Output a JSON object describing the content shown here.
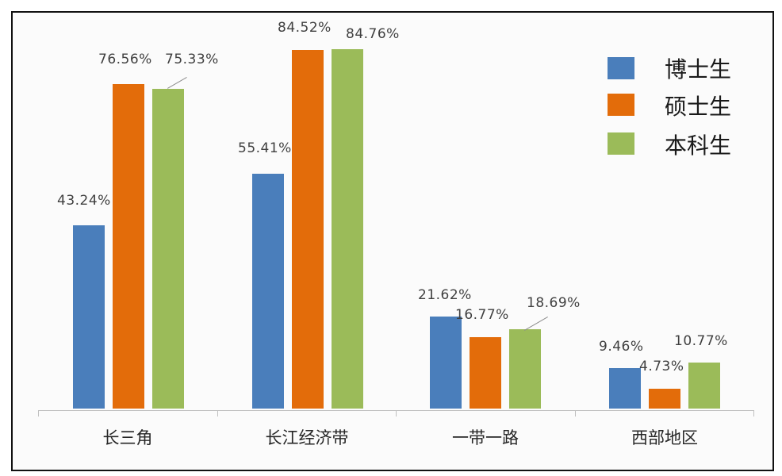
{
  "chart_data": {
    "type": "bar",
    "title": "",
    "xlabel": "",
    "ylabel": "",
    "ylim": [
      0,
      100
    ],
    "grid": false,
    "legend_position": "upper-right-inside",
    "categories": [
      "长三角",
      "长江经济带",
      "一带一路",
      "西部地区"
    ],
    "series": [
      {
        "name": "博士生",
        "color": "#4a7ebb",
        "values": [
          43.24,
          55.41,
          21.62,
          9.46
        ],
        "labels": [
          "43.24%",
          "55.41%",
          "21.62%",
          "9.46%"
        ]
      },
      {
        "name": "硕士生",
        "color": "#e36c0a",
        "values": [
          76.56,
          84.52,
          16.77,
          4.73
        ],
        "labels": [
          "76.56%",
          "84.52%",
          "16.77%",
          "4.73%"
        ]
      },
      {
        "name": "本科生",
        "color": "#9bbb59",
        "values": [
          75.33,
          84.76,
          18.69,
          10.77
        ],
        "labels": [
          "75.33%",
          "84.76%",
          "18.69%",
          "10.77%"
        ]
      }
    ]
  },
  "legend": {
    "items": [
      {
        "label": "博士生",
        "color": "#4a7ebb"
      },
      {
        "label": "硕士生",
        "color": "#e36c0a"
      },
      {
        "label": "本科生",
        "color": "#9bbb59"
      }
    ]
  }
}
